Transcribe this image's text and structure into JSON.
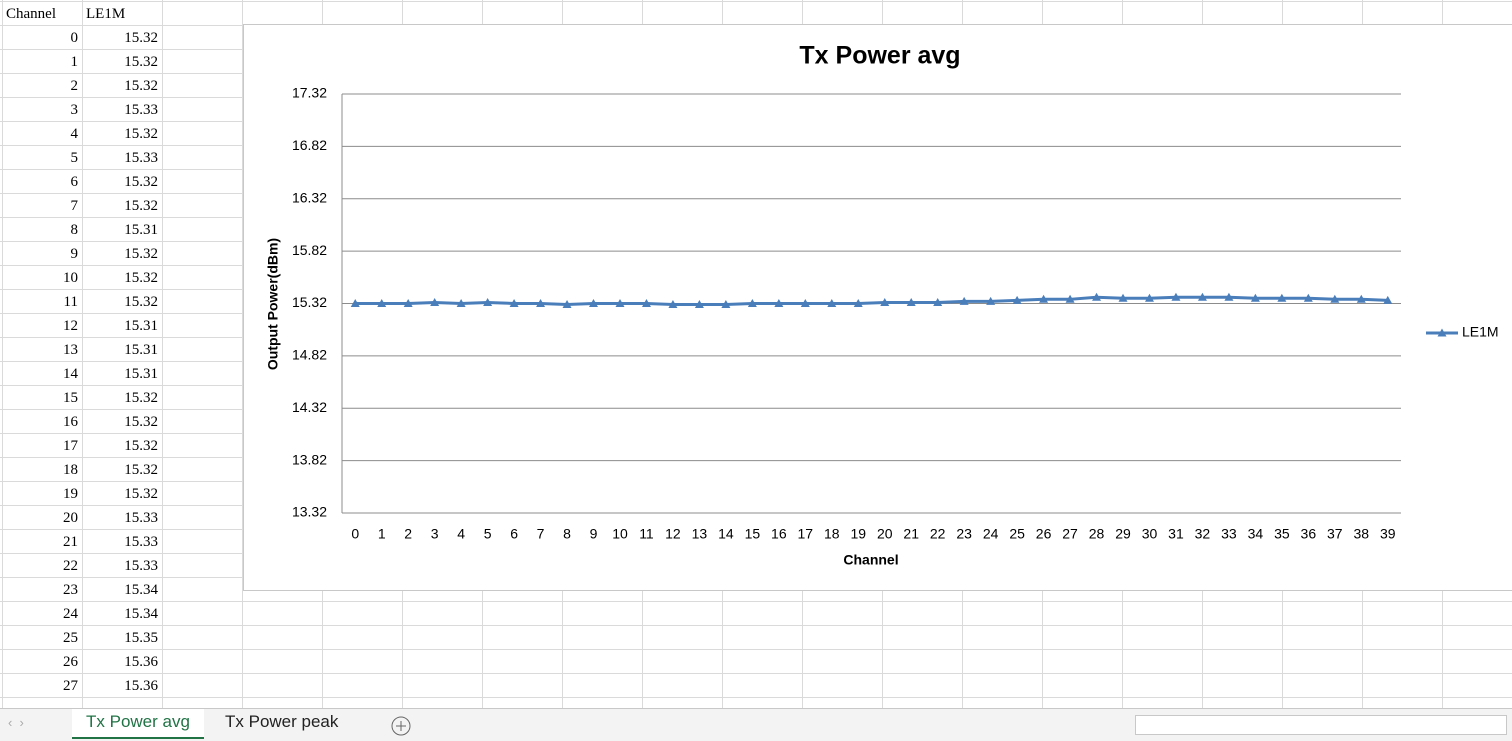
{
  "sheet": {
    "headers": [
      "Channel",
      "LE1M"
    ],
    "rows": [
      [
        0,
        15.32
      ],
      [
        1,
        15.32
      ],
      [
        2,
        15.32
      ],
      [
        3,
        15.33
      ],
      [
        4,
        15.32
      ],
      [
        5,
        15.33
      ],
      [
        6,
        15.32
      ],
      [
        7,
        15.32
      ],
      [
        8,
        15.31
      ],
      [
        9,
        15.32
      ],
      [
        10,
        15.32
      ],
      [
        11,
        15.32
      ],
      [
        12,
        15.31
      ],
      [
        13,
        15.31
      ],
      [
        14,
        15.31
      ],
      [
        15,
        15.32
      ],
      [
        16,
        15.32
      ],
      [
        17,
        15.32
      ],
      [
        18,
        15.32
      ],
      [
        19,
        15.32
      ],
      [
        20,
        15.33
      ],
      [
        21,
        15.33
      ],
      [
        22,
        15.33
      ],
      [
        23,
        15.34
      ],
      [
        24,
        15.34
      ],
      [
        25,
        15.35
      ],
      [
        26,
        15.36
      ],
      [
        27,
        15.36
      ]
    ]
  },
  "chart_data": {
    "type": "line",
    "title": "Tx Power avg",
    "x_label": "Channel",
    "y_label": "Output Power(dBm)",
    "categories": [
      0,
      1,
      2,
      3,
      4,
      5,
      6,
      7,
      8,
      9,
      10,
      11,
      12,
      13,
      14,
      15,
      16,
      17,
      18,
      19,
      20,
      21,
      22,
      23,
      24,
      25,
      26,
      27,
      28,
      29,
      30,
      31,
      32,
      33,
      34,
      35,
      36,
      37,
      38,
      39
    ],
    "series": [
      {
        "name": "LE1M",
        "color": "#4a7ebb",
        "values": [
          15.32,
          15.32,
          15.32,
          15.33,
          15.32,
          15.33,
          15.32,
          15.32,
          15.31,
          15.32,
          15.32,
          15.32,
          15.31,
          15.31,
          15.31,
          15.32,
          15.32,
          15.32,
          15.32,
          15.32,
          15.33,
          15.33,
          15.33,
          15.34,
          15.34,
          15.35,
          15.36,
          15.36,
          15.38,
          15.37,
          15.37,
          15.38,
          15.38,
          15.38,
          15.37,
          15.37,
          15.37,
          15.36,
          15.36,
          15.35
        ]
      }
    ],
    "ylim": [
      13.32,
      17.32
    ],
    "yticks": [
      13.32,
      13.82,
      14.32,
      14.82,
      15.32,
      15.82,
      16.32,
      16.82,
      17.32
    ],
    "grid": true,
    "legend": "right"
  },
  "tabs": [
    "Tx Power avg",
    "Tx Power peak"
  ]
}
